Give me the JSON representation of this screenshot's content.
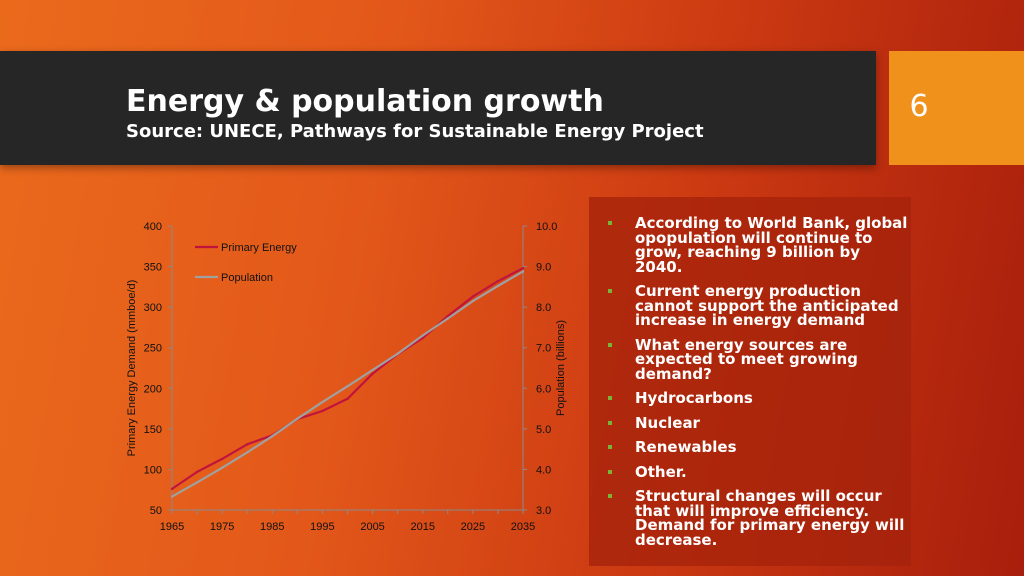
{
  "header": {
    "title": "Energy & population growth",
    "subtitle": "Source: UNECE, Pathways for Sustainable Energy Project",
    "page_number": "6"
  },
  "bullets": [
    "According to World Bank, global opopulation will continue to grow, reaching 9 billion by 2040.",
    "Current energy production cannot support the anticipated increase in energy demand",
    "What energy sources are expected to meet growing demand?",
    "Hydrocarbons",
    "Nuclear",
    "Renewables",
    "Other.",
    "Structural changes will occur that will improve efficiency. Demand for primary energy will decrease."
  ],
  "colors": {
    "primary_energy": "#c0143c",
    "population": "#a0a0a0"
  },
  "chart_data": {
    "type": "line",
    "title": "",
    "x": [
      1965,
      1970,
      1975,
      1980,
      1985,
      1990,
      1995,
      2000,
      2005,
      2010,
      2015,
      2020,
      2025,
      2030,
      2035
    ],
    "xticks": [
      "1965",
      "1975",
      "1985",
      "1995",
      "2005",
      "2015",
      "2025",
      "2035"
    ],
    "ylabel": "Primary Energy Demand (mmboe/d)",
    "ylim": [
      50,
      400
    ],
    "yticks": [
      "50",
      "100",
      "150",
      "200",
      "250",
      "300",
      "350",
      "400"
    ],
    "y2label": "Population (billions)",
    "y2lim": [
      3.0,
      10.0
    ],
    "y2ticks": [
      "3.0",
      "4.0",
      "5.0",
      "6.0",
      "7.0",
      "8.0",
      "9.0",
      "10.0"
    ],
    "legend": "top-left",
    "series": [
      {
        "name": "Primary Energy",
        "axis": "left",
        "values": [
          76,
          97,
          113,
          131,
          142,
          162,
          172,
          187,
          218,
          242,
          262,
          289,
          313,
          332,
          348
        ]
      },
      {
        "name": "Population",
        "axis": "right",
        "values": [
          3.33,
          3.68,
          4.04,
          4.42,
          4.82,
          5.25,
          5.66,
          6.05,
          6.45,
          6.85,
          7.3,
          7.72,
          8.15,
          8.52,
          8.88
        ]
      }
    ]
  }
}
